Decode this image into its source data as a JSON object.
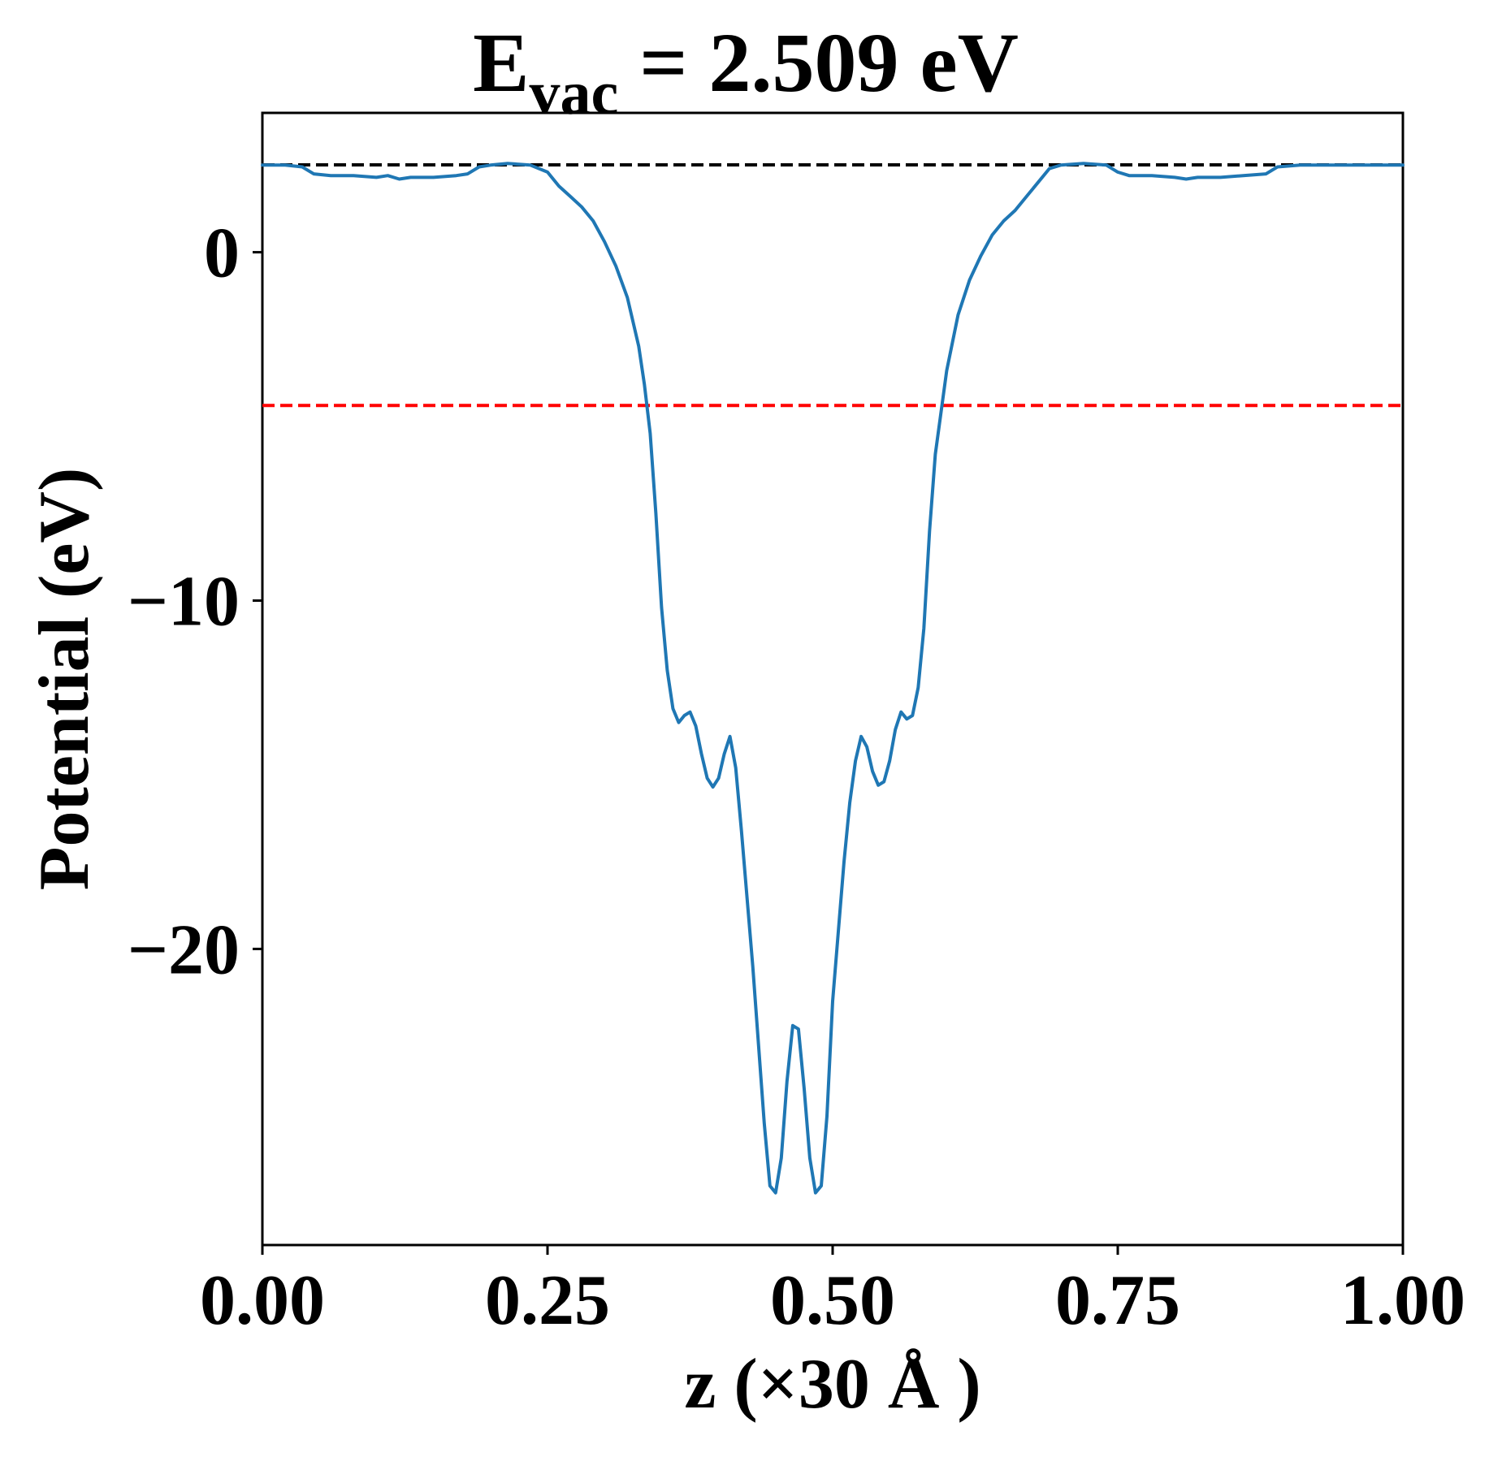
{
  "chart_data": {
    "type": "line",
    "title": {
      "main": "E",
      "subscript": "vac",
      "rest": " = 2.509 eV"
    },
    "xlabel": "z (×30 Å )",
    "ylabel": "Potential (eV)",
    "xlim": [
      0.0,
      1.0
    ],
    "ylim": [
      -28.5,
      4.0
    ],
    "x_ticks": [
      0.0,
      0.25,
      0.5,
      0.75,
      1.0
    ],
    "x_tick_labels": [
      "0.00",
      "0.25",
      "0.50",
      "0.75",
      "1.00"
    ],
    "y_ticks": [
      0,
      -10,
      -20
    ],
    "y_tick_labels": [
      "0",
      "−10",
      "−20"
    ],
    "grid": false,
    "legend": "none",
    "reference_lines": [
      {
        "y": 2.509,
        "color": "#000000",
        "style": "dashed"
      },
      {
        "y": -4.4,
        "color": "#ff0000",
        "style": "dashed"
      }
    ],
    "series": [
      {
        "color": "#1f77b4",
        "points": [
          [
            0.0,
            2.5
          ],
          [
            0.02,
            2.5
          ],
          [
            0.035,
            2.45
          ],
          [
            0.045,
            2.25
          ],
          [
            0.06,
            2.2
          ],
          [
            0.08,
            2.2
          ],
          [
            0.1,
            2.15
          ],
          [
            0.11,
            2.2
          ],
          [
            0.12,
            2.1
          ],
          [
            0.13,
            2.15
          ],
          [
            0.15,
            2.15
          ],
          [
            0.17,
            2.2
          ],
          [
            0.18,
            2.25
          ],
          [
            0.19,
            2.45
          ],
          [
            0.2,
            2.5
          ],
          [
            0.215,
            2.55
          ],
          [
            0.235,
            2.5
          ],
          [
            0.25,
            2.3
          ],
          [
            0.26,
            1.9
          ],
          [
            0.27,
            1.6
          ],
          [
            0.28,
            1.3
          ],
          [
            0.29,
            0.9
          ],
          [
            0.3,
            0.3
          ],
          [
            0.31,
            -0.4
          ],
          [
            0.32,
            -1.3
          ],
          [
            0.33,
            -2.7
          ],
          [
            0.335,
            -3.8
          ],
          [
            0.34,
            -5.2
          ],
          [
            0.345,
            -7.5
          ],
          [
            0.35,
            -10.2
          ],
          [
            0.355,
            -12.0
          ],
          [
            0.36,
            -13.1
          ],
          [
            0.365,
            -13.5
          ],
          [
            0.37,
            -13.3
          ],
          [
            0.375,
            -13.2
          ],
          [
            0.38,
            -13.6
          ],
          [
            0.385,
            -14.4
          ],
          [
            0.39,
            -15.1
          ],
          [
            0.395,
            -15.35
          ],
          [
            0.4,
            -15.1
          ],
          [
            0.405,
            -14.4
          ],
          [
            0.41,
            -13.9
          ],
          [
            0.415,
            -14.8
          ],
          [
            0.42,
            -16.6
          ],
          [
            0.43,
            -20.5
          ],
          [
            0.44,
            -25.0
          ],
          [
            0.445,
            -26.8
          ],
          [
            0.45,
            -27.0
          ],
          [
            0.455,
            -26.0
          ],
          [
            0.46,
            -23.8
          ],
          [
            0.465,
            -22.2
          ],
          [
            0.47,
            -22.3
          ],
          [
            0.475,
            -24.0
          ],
          [
            0.48,
            -26.0
          ],
          [
            0.485,
            -27.0
          ],
          [
            0.49,
            -26.8
          ],
          [
            0.495,
            -24.8
          ],
          [
            0.5,
            -21.5
          ],
          [
            0.505,
            -19.5
          ],
          [
            0.51,
            -17.5
          ],
          [
            0.515,
            -15.8
          ],
          [
            0.52,
            -14.6
          ],
          [
            0.525,
            -13.9
          ],
          [
            0.53,
            -14.2
          ],
          [
            0.535,
            -14.9
          ],
          [
            0.54,
            -15.3
          ],
          [
            0.545,
            -15.2
          ],
          [
            0.55,
            -14.6
          ],
          [
            0.555,
            -13.7
          ],
          [
            0.56,
            -13.2
          ],
          [
            0.565,
            -13.4
          ],
          [
            0.57,
            -13.3
          ],
          [
            0.575,
            -12.5
          ],
          [
            0.58,
            -10.8
          ],
          [
            0.585,
            -8.0
          ],
          [
            0.59,
            -5.8
          ],
          [
            0.6,
            -3.4
          ],
          [
            0.61,
            -1.8
          ],
          [
            0.62,
            -0.8
          ],
          [
            0.63,
            -0.1
          ],
          [
            0.64,
            0.5
          ],
          [
            0.65,
            0.9
          ],
          [
            0.66,
            1.2
          ],
          [
            0.67,
            1.6
          ],
          [
            0.68,
            2.0
          ],
          [
            0.69,
            2.4
          ],
          [
            0.7,
            2.5
          ],
          [
            0.72,
            2.55
          ],
          [
            0.74,
            2.5
          ],
          [
            0.75,
            2.3
          ],
          [
            0.76,
            2.2
          ],
          [
            0.78,
            2.2
          ],
          [
            0.8,
            2.15
          ],
          [
            0.81,
            2.1
          ],
          [
            0.82,
            2.15
          ],
          [
            0.84,
            2.15
          ],
          [
            0.86,
            2.2
          ],
          [
            0.88,
            2.25
          ],
          [
            0.89,
            2.45
          ],
          [
            0.91,
            2.5
          ],
          [
            0.95,
            2.5
          ],
          [
            1.0,
            2.5
          ]
        ]
      }
    ]
  }
}
